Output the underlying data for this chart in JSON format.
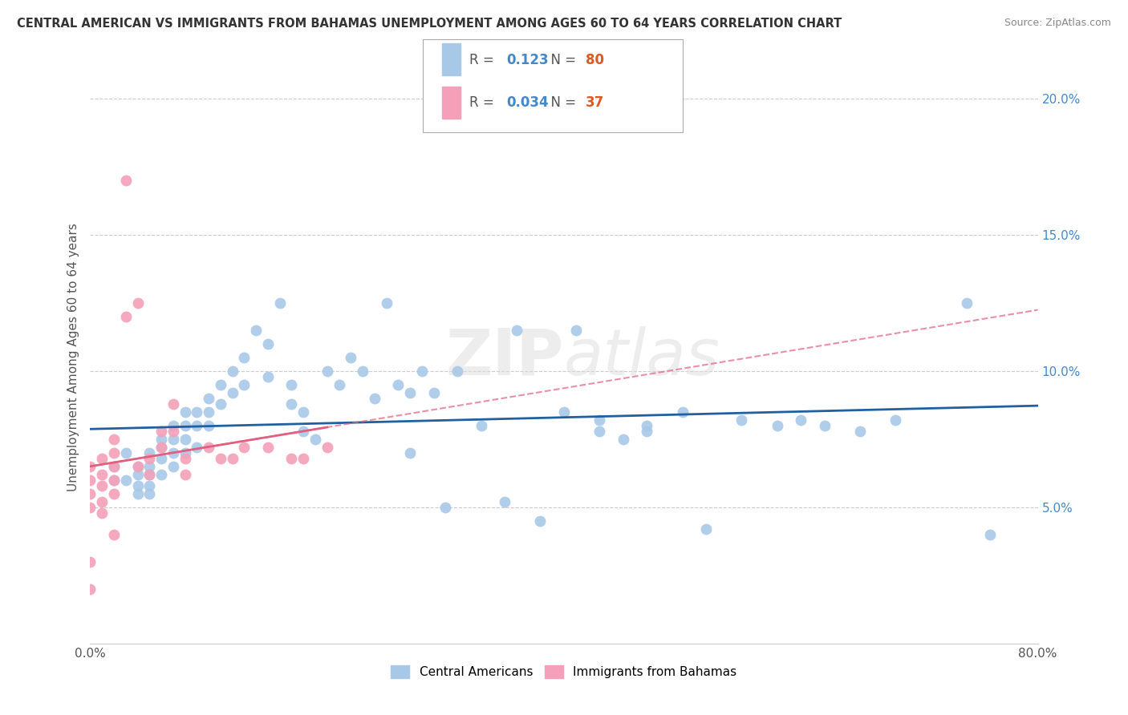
{
  "title": "CENTRAL AMERICAN VS IMMIGRANTS FROM BAHAMAS UNEMPLOYMENT AMONG AGES 60 TO 64 YEARS CORRELATION CHART",
  "source": "Source: ZipAtlas.com",
  "ylabel": "Unemployment Among Ages 60 to 64 years",
  "watermark": "ZIPatlas",
  "xlim": [
    0.0,
    0.8
  ],
  "ylim": [
    0.0,
    0.21
  ],
  "xticks": [
    0.0,
    0.1,
    0.2,
    0.3,
    0.4,
    0.5,
    0.6,
    0.7,
    0.8
  ],
  "xticklabels": [
    "0.0%",
    "",
    "",
    "",
    "",
    "",
    "",
    "",
    "80.0%"
  ],
  "yticks": [
    0.0,
    0.05,
    0.1,
    0.15,
    0.2
  ],
  "yticklabels": [
    "",
    "5.0%",
    "10.0%",
    "15.0%",
    "20.0%"
  ],
  "legend1_r": "0.123",
  "legend1_n": "80",
  "legend2_r": "0.034",
  "legend2_n": "37",
  "blue_color": "#a8c8e8",
  "pink_color": "#f4a0b8",
  "blue_line_color": "#2060a0",
  "pink_line_color": "#e06080",
  "blue_scatter_x": [
    0.02,
    0.02,
    0.03,
    0.03,
    0.04,
    0.04,
    0.04,
    0.04,
    0.05,
    0.05,
    0.05,
    0.05,
    0.05,
    0.06,
    0.06,
    0.06,
    0.06,
    0.07,
    0.07,
    0.07,
    0.07,
    0.08,
    0.08,
    0.08,
    0.08,
    0.09,
    0.09,
    0.09,
    0.1,
    0.1,
    0.1,
    0.11,
    0.11,
    0.12,
    0.12,
    0.13,
    0.13,
    0.14,
    0.15,
    0.15,
    0.16,
    0.17,
    0.17,
    0.18,
    0.18,
    0.19,
    0.2,
    0.21,
    0.22,
    0.23,
    0.24,
    0.25,
    0.26,
    0.27,
    0.27,
    0.28,
    0.29,
    0.3,
    0.31,
    0.33,
    0.35,
    0.36,
    0.38,
    0.4,
    0.41,
    0.43,
    0.43,
    0.45,
    0.47,
    0.47,
    0.5,
    0.52,
    0.55,
    0.58,
    0.6,
    0.62,
    0.65,
    0.68,
    0.74,
    0.76
  ],
  "blue_scatter_y": [
    0.065,
    0.06,
    0.07,
    0.06,
    0.065,
    0.062,
    0.058,
    0.055,
    0.07,
    0.065,
    0.062,
    0.058,
    0.055,
    0.075,
    0.072,
    0.068,
    0.062,
    0.08,
    0.075,
    0.07,
    0.065,
    0.085,
    0.08,
    0.075,
    0.07,
    0.085,
    0.08,
    0.072,
    0.09,
    0.085,
    0.08,
    0.095,
    0.088,
    0.1,
    0.092,
    0.105,
    0.095,
    0.115,
    0.11,
    0.098,
    0.125,
    0.095,
    0.088,
    0.085,
    0.078,
    0.075,
    0.1,
    0.095,
    0.105,
    0.1,
    0.09,
    0.125,
    0.095,
    0.092,
    0.07,
    0.1,
    0.092,
    0.05,
    0.1,
    0.08,
    0.052,
    0.115,
    0.045,
    0.085,
    0.115,
    0.082,
    0.078,
    0.075,
    0.078,
    0.08,
    0.085,
    0.042,
    0.082,
    0.08,
    0.082,
    0.08,
    0.078,
    0.082,
    0.125,
    0.04
  ],
  "pink_scatter_x": [
    0.0,
    0.0,
    0.0,
    0.0,
    0.0,
    0.0,
    0.01,
    0.01,
    0.01,
    0.01,
    0.01,
    0.02,
    0.02,
    0.02,
    0.02,
    0.02,
    0.02,
    0.03,
    0.03,
    0.04,
    0.04,
    0.05,
    0.05,
    0.06,
    0.06,
    0.07,
    0.07,
    0.08,
    0.08,
    0.1,
    0.11,
    0.12,
    0.13,
    0.15,
    0.17,
    0.18,
    0.2
  ],
  "pink_scatter_y": [
    0.065,
    0.06,
    0.055,
    0.05,
    0.03,
    0.02,
    0.068,
    0.062,
    0.058,
    0.052,
    0.048,
    0.075,
    0.07,
    0.065,
    0.06,
    0.055,
    0.04,
    0.12,
    0.17,
    0.125,
    0.065,
    0.068,
    0.062,
    0.078,
    0.072,
    0.088,
    0.078,
    0.068,
    0.062,
    0.072,
    0.068,
    0.068,
    0.072,
    0.072,
    0.068,
    0.068,
    0.072
  ]
}
